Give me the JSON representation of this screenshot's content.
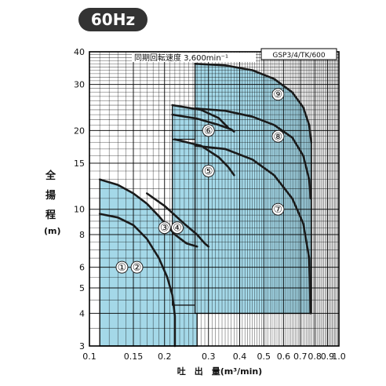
{
  "badge": "60Hz",
  "chart_data": {
    "type": "area",
    "title": "同期回転速度 3,600min⁻¹",
    "model": "GSP3/4/TK/600",
    "xlabel": "吐　出　量(m³/min)",
    "ylabel": [
      "全",
      "揚",
      "程",
      "(m)"
    ],
    "x_scale": "log",
    "y_scale": "log",
    "xlim": [
      0.1,
      1.0
    ],
    "ylim": [
      3,
      40
    ],
    "x_ticks": [
      0.1,
      0.15,
      0.2,
      0.3,
      0.4,
      0.5,
      0.6,
      0.7,
      0.8,
      0.9,
      1.0
    ],
    "x_tick_labels": [
      "0.1",
      "0.15",
      "0.2",
      "0.3",
      "0.4",
      "0.5",
      "0.6",
      "0.7",
      "0.8",
      "0.9",
      "1.0"
    ],
    "y_ticks": [
      3,
      4,
      5,
      6,
      8,
      10,
      15,
      20,
      30,
      40
    ],
    "y_tick_labels": [
      "3",
      "4",
      "5",
      "6",
      "8",
      "10",
      "15",
      "20",
      "30",
      "40"
    ],
    "series": [
      {
        "name": "①",
        "values": [
          [
            0.11,
            9.6
          ],
          [
            0.13,
            9.3
          ],
          [
            0.15,
            8.7
          ],
          [
            0.17,
            7.7
          ],
          [
            0.19,
            6.5
          ],
          [
            0.205,
            5.5
          ],
          [
            0.215,
            4.7
          ],
          [
            0.22,
            3.9
          ],
          [
            0.22,
            3.0
          ]
        ]
      },
      {
        "name": "②",
        "values": [
          [
            0.11,
            13.0
          ],
          [
            0.13,
            12.4
          ],
          [
            0.15,
            11.5
          ],
          [
            0.17,
            10.5
          ],
          [
            0.19,
            9.4
          ],
          [
            0.22,
            8.0
          ],
          [
            0.245,
            7.4
          ],
          [
            0.27,
            7.2
          ]
        ]
      },
      {
        "name": "③",
        "values": [
          [
            0.17,
            11.5
          ],
          [
            0.2,
            10.3
          ],
          [
            0.24,
            8.8
          ],
          [
            0.27,
            8.0
          ],
          [
            0.29,
            7.4
          ],
          [
            0.3,
            7.2
          ]
        ]
      },
      {
        "name": "④",
        "values": [
          [
            0.22,
            18.5
          ],
          [
            0.28,
            17.5
          ],
          [
            0.33,
            15.8
          ],
          [
            0.36,
            14.5
          ],
          [
            0.38,
            13.5
          ]
        ]
      },
      {
        "name": "⑤",
        "values": [
          [
            0.215,
            23.0
          ],
          [
            0.27,
            22.2
          ],
          [
            0.33,
            21.0
          ],
          [
            0.37,
            20.2
          ],
          [
            0.38,
            19.8
          ]
        ]
      },
      {
        "name": "⑥",
        "values": [
          [
            0.215,
            25.0
          ],
          [
            0.28,
            24.0
          ],
          [
            0.33,
            22.3
          ],
          [
            0.36,
            20.5
          ]
        ]
      },
      {
        "name": "⑦",
        "values": [
          [
            0.265,
            17.5
          ],
          [
            0.35,
            17.0
          ],
          [
            0.45,
            15.5
          ],
          [
            0.55,
            13.5
          ],
          [
            0.65,
            11.0
          ],
          [
            0.72,
            8.8
          ],
          [
            0.76,
            6.5
          ],
          [
            0.77,
            4.0
          ]
        ]
      },
      {
        "name": "⑧",
        "values": [
          [
            0.265,
            24.3
          ],
          [
            0.35,
            23.8
          ],
          [
            0.45,
            22.6
          ],
          [
            0.55,
            21.0
          ],
          [
            0.65,
            18.8
          ],
          [
            0.72,
            16.0
          ],
          [
            0.76,
            13.0
          ],
          [
            0.77,
            11.0
          ]
        ]
      },
      {
        "name": "⑨",
        "values": [
          [
            0.265,
            36.0
          ],
          [
            0.35,
            35.5
          ],
          [
            0.45,
            34.0
          ],
          [
            0.55,
            31.5
          ],
          [
            0.65,
            28.0
          ],
          [
            0.72,
            24.5
          ],
          [
            0.76,
            21.0
          ],
          [
            0.775,
            18.0
          ]
        ]
      }
    ],
    "regions": [
      {
        "label": "①②",
        "color": "#a4d8e8",
        "outline": [
          [
            0.11,
            3.0
          ],
          [
            0.11,
            13.0
          ],
          [
            0.13,
            12.4
          ],
          [
            0.15,
            11.5
          ],
          [
            0.17,
            10.5
          ],
          [
            0.19,
            9.4
          ],
          [
            0.22,
            8.0
          ],
          [
            0.245,
            7.4
          ],
          [
            0.27,
            7.2
          ],
          [
            0.27,
            3.0
          ]
        ]
      },
      {
        "label": "③④⑤",
        "color": "#a4d8e8",
        "outline": [
          [
            0.215,
            4.3
          ],
          [
            0.215,
            18.5
          ],
          [
            0.28,
            17.5
          ],
          [
            0.33,
            15.8
          ],
          [
            0.36,
            14.5
          ],
          [
            0.38,
            13.5
          ],
          [
            0.38,
            4.3
          ]
        ]
      },
      {
        "label": "⑥",
        "color": "#a4d8e8",
        "outline": [
          [
            0.215,
            18.5
          ],
          [
            0.215,
            25.0
          ],
          [
            0.28,
            24.0
          ],
          [
            0.33,
            22.3
          ],
          [
            0.36,
            20.5
          ],
          [
            0.36,
            18.5
          ]
        ]
      },
      {
        "label": "⑦⑧⑨",
        "color": "#a4d8e8",
        "outline": [
          [
            0.265,
            4.0
          ],
          [
            0.265,
            36.0
          ],
          [
            0.35,
            35.5
          ],
          [
            0.45,
            34.0
          ],
          [
            0.55,
            31.5
          ],
          [
            0.65,
            28.0
          ],
          [
            0.72,
            24.5
          ],
          [
            0.76,
            21.0
          ],
          [
            0.775,
            18.0
          ],
          [
            0.775,
            4.0
          ]
        ]
      }
    ],
    "point_labels": [
      {
        "text": "①",
        "x": 0.135,
        "y": 6.0
      },
      {
        "text": "②",
        "x": 0.155,
        "y": 6.0
      },
      {
        "text": "③",
        "x": 0.2,
        "y": 8.5
      },
      {
        "text": "④",
        "x": 0.225,
        "y": 8.5
      },
      {
        "text": "⑤",
        "x": 0.3,
        "y": 14.0
      },
      {
        "text": "⑥",
        "x": 0.3,
        "y": 20.0
      },
      {
        "text": "⑦",
        "x": 0.57,
        "y": 10.0
      },
      {
        "text": "⑧",
        "x": 0.57,
        "y": 19.0
      },
      {
        "text": "⑨",
        "x": 0.57,
        "y": 27.5
      }
    ],
    "grid": true,
    "colors": {
      "fill": "#a4d8e8",
      "curve": "#1a1a1a",
      "grid": "#000000"
    }
  }
}
